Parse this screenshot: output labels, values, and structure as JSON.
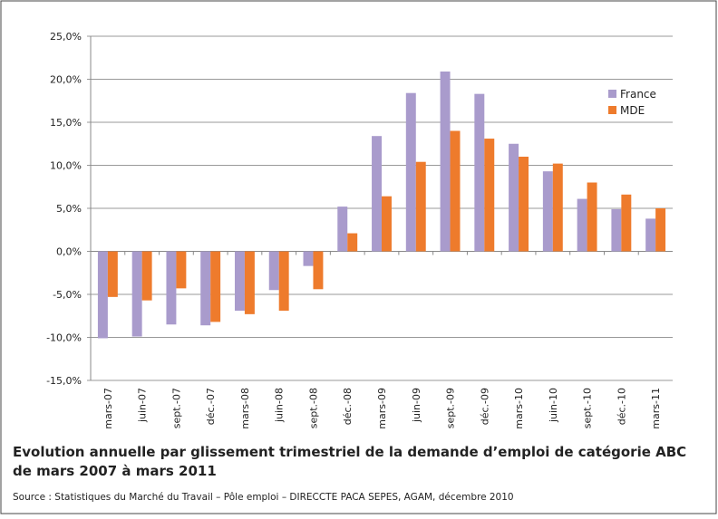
{
  "chart_data": {
    "type": "bar",
    "title": "Evolution annuelle par glissement trimestriel de la demande d’emploi de catégorie ABC",
    "subtitle": "de mars 2007 à mars 2011",
    "source": "Source : Statistiques du Marché du Travail – Pôle emploi – DIRECCTE PACA SEPES, AGAM, décembre 2010",
    "categories": [
      "mars-07",
      "juin-07",
      "sept.-07",
      "déc.-07",
      "mars-08",
      "juin-08",
      "sept.-08",
      "déc.-08",
      "mars-09",
      "juin-09",
      "sept.-09",
      "déc.-09",
      "mars-10",
      "juin-10",
      "sept.-10",
      "déc.-10",
      "mars-11"
    ],
    "series": [
      {
        "name": "France",
        "color": "#a99bcc",
        "values": [
          -10.1,
          -9.9,
          -8.5,
          -8.6,
          -6.9,
          -4.5,
          -1.7,
          5.2,
          13.4,
          18.4,
          20.9,
          18.3,
          12.5,
          9.3,
          6.1,
          4.9,
          3.8
        ]
      },
      {
        "name": "MDE",
        "color": "#ee7b2c",
        "values": [
          -5.3,
          -5.7,
          -4.3,
          -8.2,
          -7.3,
          -6.9,
          -4.4,
          2.1,
          6.4,
          10.4,
          14.0,
          13.1,
          11.0,
          10.2,
          8.0,
          6.6,
          5.0
        ]
      }
    ],
    "ylim": [
      -15,
      25
    ],
    "yticks": [
      {
        "value": -15,
        "label": "-15,0%"
      },
      {
        "value": -10,
        "label": "-10,0%"
      },
      {
        "value": -5,
        "label": "-5,0%"
      },
      {
        "value": 0,
        "label": "0,0%"
      },
      {
        "value": 5,
        "label": "5,0%"
      },
      {
        "value": 10,
        "label": "10,0%"
      },
      {
        "value": 15,
        "label": "15,0%"
      },
      {
        "value": 20,
        "label": "20,0%"
      },
      {
        "value": 25,
        "label": "25,0%"
      }
    ],
    "grid": true,
    "legend": "upper right"
  }
}
